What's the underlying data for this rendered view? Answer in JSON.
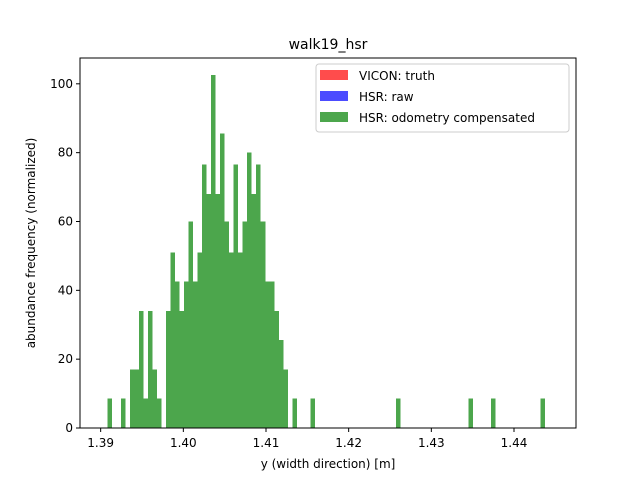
{
  "chart_data": {
    "type": "bar",
    "subtype": "histogram",
    "title": "walk19_hsr",
    "xlabel": "y (width direction) [m]",
    "ylabel": "abundance frequency (normalized)",
    "xlim": [
      1.3875,
      1.4475
    ],
    "ylim": [
      0,
      107.5
    ],
    "xticks": [
      1.39,
      1.4,
      1.41,
      1.42,
      1.43,
      1.44
    ],
    "xtick_labels": [
      "1.39",
      "1.40",
      "1.41",
      "1.42",
      "1.43",
      "1.44"
    ],
    "yticks": [
      0,
      20,
      40,
      60,
      80,
      100
    ],
    "ytick_labels": [
      "0",
      "20",
      "40",
      "60",
      "80",
      "100"
    ],
    "grid": false,
    "legend_position": "top-right",
    "bin_range": [
      1.3908,
      1.4448
    ],
    "bin_width": 0.000546,
    "series": [
      {
        "name": "VICON: truth",
        "color": "#ff0000",
        "alpha": 0.7,
        "values": []
      },
      {
        "name": "HSR: raw",
        "color": "#0000ff",
        "alpha": 0.7,
        "values": []
      },
      {
        "name": "HSR: odometry compensated",
        "color": "#008000",
        "alpha": 0.7,
        "values": [
          8.5,
          0,
          0,
          8.5,
          0,
          17,
          17,
          34,
          8.5,
          34,
          17,
          8.5,
          0,
          34,
          51,
          42.5,
          34,
          42.5,
          60,
          42.5,
          51,
          76.5,
          68,
          102.5,
          68,
          85.5,
          60,
          51,
          76.5,
          51,
          60,
          80,
          68,
          76.5,
          60,
          42.5,
          42.5,
          34,
          25.5,
          17,
          0,
          8.5,
          0,
          0,
          0,
          8.5,
          0,
          0,
          0,
          0,
          0,
          0,
          0,
          0,
          0,
          0,
          0,
          0,
          0,
          0,
          0,
          0,
          0,
          0,
          8.5,
          0,
          0,
          0,
          0,
          0,
          0,
          0,
          0,
          0,
          0,
          0,
          0,
          0,
          0,
          0,
          8.5,
          0,
          0,
          0,
          0,
          8.5,
          0,
          0,
          0,
          0,
          0,
          0,
          0,
          0,
          0,
          0,
          8.5
        ]
      }
    ]
  }
}
